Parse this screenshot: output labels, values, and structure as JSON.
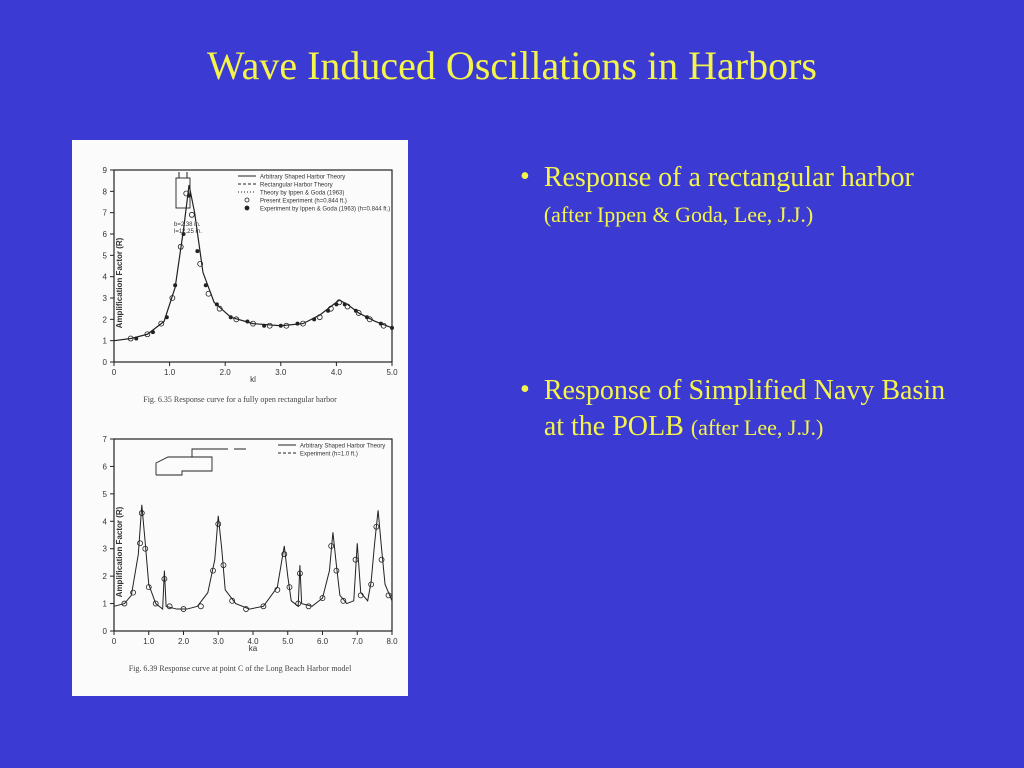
{
  "slide": {
    "title": "Wave Induced Oscillations in Harbors",
    "background_color": "#3b3bd4",
    "title_color": "#f4f44a",
    "title_fontsize": 40
  },
  "bullets": [
    {
      "main": "Response of a rectangular harbor",
      "sub": "(after Ippen & Goda, Lee, J.J.)"
    },
    {
      "main": "Response of Simplified Navy Basin at the POLB",
      "sub": "(after Lee, J.J.)"
    }
  ],
  "figure": {
    "panel_bg": "#fbfbfb",
    "text_color": "#333333",
    "chart1": {
      "type": "line+scatter",
      "caption": "Fig. 6.35   Response curve for a fully open rectangular harbor",
      "xlabel": "kl",
      "ylabel": "Amplification Factor (R)",
      "xlim": [
        0,
        5.0
      ],
      "ylim": [
        0,
        9
      ],
      "xticks": [
        0,
        1.0,
        2.0,
        3.0,
        4.0,
        5.0
      ],
      "yticks": [
        0,
        1,
        2,
        3,
        4,
        5,
        6,
        7,
        8,
        9
      ],
      "inset_label": "b=2.38 in.\nl=12.25 in.",
      "legend": [
        "Arbitrary Shaped Harbor Theory",
        "Rectangular Harbor Theory",
        "Theory by Ippen & Goda (1963)",
        "Present Experiment (h=0.844 ft.)",
        "Experiment by Ippen & Goda (1963) (h=0.844 ft.)"
      ],
      "line_color": "#222222",
      "line_width": 1.2,
      "marker_open_color": "#222222",
      "marker_fill_color": "#222222",
      "marker_size": 2.5,
      "curve": [
        [
          0.0,
          1.0
        ],
        [
          0.3,
          1.1
        ],
        [
          0.6,
          1.3
        ],
        [
          0.9,
          1.9
        ],
        [
          1.1,
          3.5
        ],
        [
          1.25,
          6.2
        ],
        [
          1.35,
          8.3
        ],
        [
          1.45,
          7.0
        ],
        [
          1.6,
          4.2
        ],
        [
          1.8,
          2.8
        ],
        [
          2.1,
          2.1
        ],
        [
          2.5,
          1.8
        ],
        [
          3.0,
          1.7
        ],
        [
          3.4,
          1.8
        ],
        [
          3.7,
          2.2
        ],
        [
          3.9,
          2.6
        ],
        [
          4.05,
          2.9
        ],
        [
          4.2,
          2.7
        ],
        [
          4.4,
          2.3
        ],
        [
          4.7,
          1.9
        ],
        [
          5.0,
          1.6
        ]
      ],
      "scatter_open": [
        [
          0.3,
          1.1
        ],
        [
          0.6,
          1.3
        ],
        [
          0.85,
          1.8
        ],
        [
          1.05,
          3.0
        ],
        [
          1.2,
          5.4
        ],
        [
          1.3,
          7.9
        ],
        [
          1.4,
          6.9
        ],
        [
          1.55,
          4.6
        ],
        [
          1.7,
          3.2
        ],
        [
          1.9,
          2.5
        ],
        [
          2.2,
          2.0
        ],
        [
          2.5,
          1.8
        ],
        [
          2.8,
          1.7
        ],
        [
          3.1,
          1.7
        ],
        [
          3.4,
          1.8
        ],
        [
          3.7,
          2.1
        ],
        [
          3.9,
          2.5
        ],
        [
          4.05,
          2.8
        ],
        [
          4.2,
          2.6
        ],
        [
          4.4,
          2.3
        ],
        [
          4.6,
          2.0
        ],
        [
          4.85,
          1.7
        ]
      ],
      "scatter_filled": [
        [
          0.4,
          1.1
        ],
        [
          0.7,
          1.4
        ],
        [
          0.95,
          2.1
        ],
        [
          1.1,
          3.6
        ],
        [
          1.25,
          6.0
        ],
        [
          1.35,
          7.8
        ],
        [
          1.5,
          5.2
        ],
        [
          1.65,
          3.6
        ],
        [
          1.85,
          2.7
        ],
        [
          2.1,
          2.1
        ],
        [
          2.4,
          1.9
        ],
        [
          2.7,
          1.7
        ],
        [
          3.0,
          1.7
        ],
        [
          3.3,
          1.8
        ],
        [
          3.6,
          2.0
        ],
        [
          3.85,
          2.4
        ],
        [
          4.0,
          2.7
        ],
        [
          4.15,
          2.7
        ],
        [
          4.35,
          2.4
        ],
        [
          4.55,
          2.1
        ],
        [
          4.8,
          1.8
        ],
        [
          5.0,
          1.6
        ]
      ]
    },
    "chart2": {
      "type": "line+scatter",
      "caption": "Fig. 6.39   Response curve at point C of the Long Beach Harbor model",
      "xlabel": "ka",
      "ylabel": "Amplification Factor (R)",
      "xlim": [
        0,
        8.0
      ],
      "ylim": [
        0,
        7
      ],
      "xticks": [
        0,
        1.0,
        2.0,
        3.0,
        4.0,
        5.0,
        6.0,
        7.0,
        8.0
      ],
      "yticks": [
        0,
        1,
        2,
        3,
        4,
        5,
        6,
        7
      ],
      "legend": [
        "Arbitrary Shaped Harbor Theory",
        "Experiment (h=1.0 ft.)"
      ],
      "line_color": "#222222",
      "line_width": 1.0,
      "marker_open_color": "#222222",
      "marker_size": 2.5,
      "curve": [
        [
          0.0,
          0.9
        ],
        [
          0.3,
          1.0
        ],
        [
          0.5,
          1.3
        ],
        [
          0.7,
          2.8
        ],
        [
          0.8,
          4.6
        ],
        [
          0.9,
          3.2
        ],
        [
          1.0,
          1.7
        ],
        [
          1.2,
          1.0
        ],
        [
          1.4,
          0.8
        ],
        [
          1.45,
          2.2
        ],
        [
          1.5,
          0.9
        ],
        [
          1.8,
          0.8
        ],
        [
          2.1,
          0.8
        ],
        [
          2.4,
          0.9
        ],
        [
          2.7,
          1.4
        ],
        [
          2.9,
          2.6
        ],
        [
          3.0,
          4.2
        ],
        [
          3.1,
          3.0
        ],
        [
          3.2,
          1.5
        ],
        [
          3.5,
          1.0
        ],
        [
          3.9,
          0.8
        ],
        [
          4.3,
          0.9
        ],
        [
          4.7,
          1.6
        ],
        [
          4.9,
          3.1
        ],
        [
          5.0,
          2.0
        ],
        [
          5.1,
          1.1
        ],
        [
          5.3,
          0.9
        ],
        [
          5.35,
          2.4
        ],
        [
          5.4,
          1.0
        ],
        [
          5.7,
          0.9
        ],
        [
          6.0,
          1.2
        ],
        [
          6.2,
          2.2
        ],
        [
          6.3,
          3.6
        ],
        [
          6.4,
          2.4
        ],
        [
          6.5,
          1.3
        ],
        [
          6.7,
          1.0
        ],
        [
          6.9,
          1.1
        ],
        [
          7.0,
          3.2
        ],
        [
          7.1,
          1.4
        ],
        [
          7.3,
          1.1
        ],
        [
          7.4,
          1.8
        ],
        [
          7.5,
          3.2
        ],
        [
          7.6,
          4.4
        ],
        [
          7.7,
          3.0
        ],
        [
          7.8,
          1.7
        ],
        [
          8.0,
          1.1
        ]
      ],
      "scatter_open": [
        [
          0.3,
          1.0
        ],
        [
          0.55,
          1.4
        ],
        [
          0.75,
          3.2
        ],
        [
          0.8,
          4.3
        ],
        [
          0.9,
          3.0
        ],
        [
          1.0,
          1.6
        ],
        [
          1.2,
          1.0
        ],
        [
          1.45,
          1.9
        ],
        [
          1.6,
          0.9
        ],
        [
          2.0,
          0.8
        ],
        [
          2.5,
          0.9
        ],
        [
          2.85,
          2.2
        ],
        [
          3.0,
          3.9
        ],
        [
          3.15,
          2.4
        ],
        [
          3.4,
          1.1
        ],
        [
          3.8,
          0.8
        ],
        [
          4.3,
          0.9
        ],
        [
          4.7,
          1.5
        ],
        [
          4.9,
          2.8
        ],
        [
          5.05,
          1.6
        ],
        [
          5.3,
          1.0
        ],
        [
          5.35,
          2.1
        ],
        [
          5.6,
          0.9
        ],
        [
          6.0,
          1.2
        ],
        [
          6.25,
          3.1
        ],
        [
          6.4,
          2.2
        ],
        [
          6.6,
          1.1
        ],
        [
          6.95,
          2.6
        ],
        [
          7.1,
          1.3
        ],
        [
          7.4,
          1.7
        ],
        [
          7.55,
          3.8
        ],
        [
          7.7,
          2.6
        ],
        [
          7.9,
          1.3
        ]
      ]
    }
  }
}
